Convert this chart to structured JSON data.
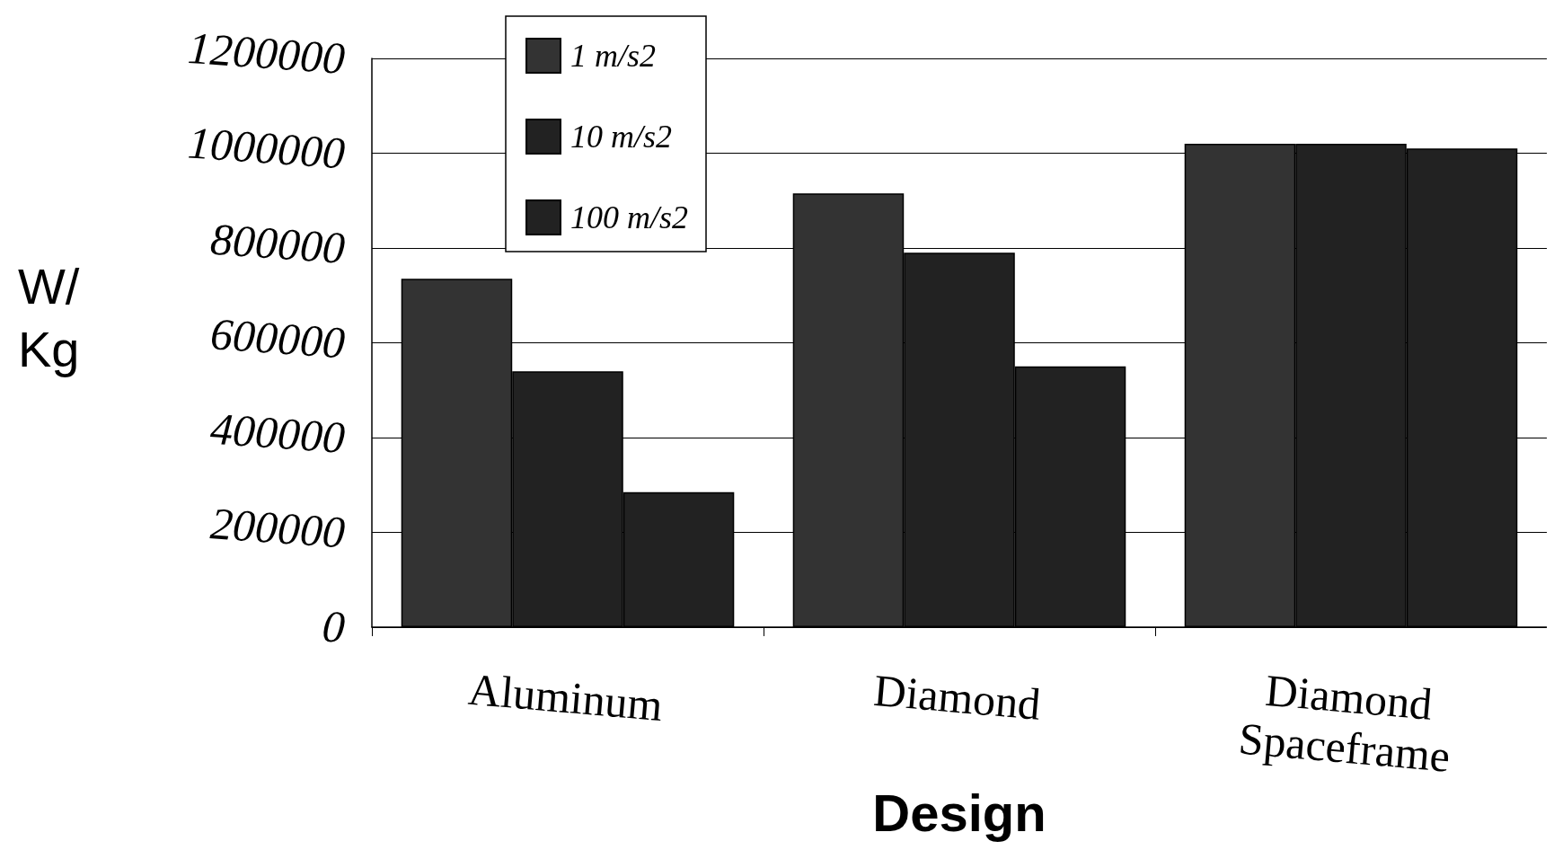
{
  "chart_data": {
    "type": "bar",
    "xlabel": "Design",
    "ylabel": "W/\nKg",
    "categories": [
      "Aluminum",
      "Diamond",
      "Diamond\nSpaceframe"
    ],
    "series": [
      {
        "name": "1 m/s2",
        "color": "#333333",
        "values": [
          735000,
          915000,
          1020000
        ]
      },
      {
        "name": "10 m/s2",
        "color": "#222222",
        "values": [
          540000,
          790000,
          1020000
        ]
      },
      {
        "name": "100 m/s2",
        "color": "#222222",
        "values": [
          285000,
          550000,
          1010000
        ]
      }
    ],
    "ylim": [
      0,
      1200000
    ],
    "yticks": [
      0,
      200000,
      400000,
      600000,
      800000,
      1000000,
      1200000
    ],
    "grid": "y",
    "legend": "top left"
  }
}
